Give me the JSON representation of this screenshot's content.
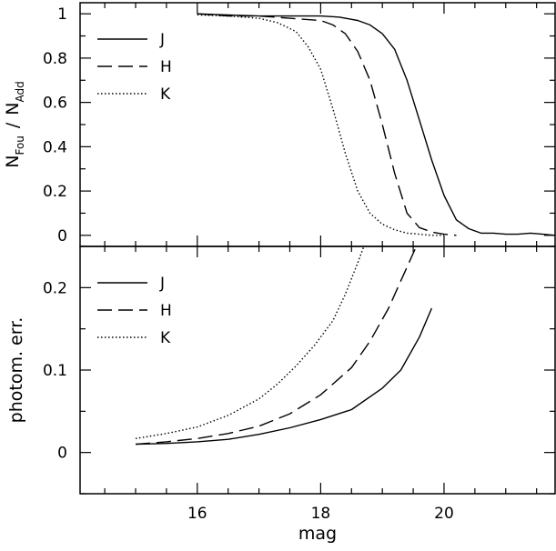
{
  "chart_data": [
    {
      "type": "line",
      "title": "",
      "xlabel": "",
      "ylabel": "N_Fou / N_Add",
      "ylabel_parts": {
        "n1": "N",
        "sub1": "Fou",
        "slash": "/",
        "n2": "N",
        "sub2": "Add"
      },
      "xlim": [
        14.1,
        21.8
      ],
      "ylim": [
        -0.05,
        1.05
      ],
      "yticks": [
        "0",
        "0.2",
        "0.4",
        "0.6",
        "0.8",
        "1"
      ],
      "legend": "top-left",
      "series": [
        {
          "name": "J",
          "dash": "solid",
          "x": [
            16.0,
            16.5,
            17.0,
            17.5,
            18.0,
            18.3,
            18.6,
            18.8,
            19.0,
            19.2,
            19.4,
            19.6,
            19.8,
            20.0,
            20.2,
            20.4,
            20.6,
            20.8,
            21.0,
            21.2,
            21.4,
            21.6,
            21.8
          ],
          "y": [
            1.0,
            0.995,
            0.99,
            0.99,
            0.99,
            0.985,
            0.97,
            0.95,
            0.91,
            0.84,
            0.7,
            0.52,
            0.34,
            0.18,
            0.07,
            0.03,
            0.01,
            0.01,
            0.005,
            0.005,
            0.01,
            0.005,
            0.0
          ]
        },
        {
          "name": "H",
          "dash": "long-dash",
          "x": [
            16.0,
            16.5,
            17.0,
            17.5,
            18.0,
            18.2,
            18.4,
            18.6,
            18.8,
            19.0,
            19.2,
            19.4,
            19.6,
            19.8,
            20.0,
            20.2
          ],
          "y": [
            1.0,
            0.99,
            0.99,
            0.98,
            0.97,
            0.95,
            0.91,
            0.83,
            0.7,
            0.5,
            0.28,
            0.1,
            0.035,
            0.015,
            0.005,
            0.0
          ]
        },
        {
          "name": "K",
          "dash": "dotted",
          "x": [
            16.0,
            16.5,
            17.0,
            17.3,
            17.6,
            17.8,
            18.0,
            18.2,
            18.4,
            18.6,
            18.8,
            19.0,
            19.2,
            19.4,
            19.6,
            19.8,
            20.0
          ],
          "y": [
            0.995,
            0.99,
            0.98,
            0.96,
            0.92,
            0.85,
            0.75,
            0.57,
            0.37,
            0.2,
            0.1,
            0.05,
            0.025,
            0.01,
            0.005,
            0.0,
            0.0
          ]
        }
      ]
    },
    {
      "type": "line",
      "title": "",
      "xlabel": "mag",
      "ylabel": "photom. err.",
      "xlim": [
        14.1,
        21.8
      ],
      "ylim": [
        -0.05,
        0.25
      ],
      "xticks": [
        "16",
        "18",
        "20"
      ],
      "yticks": [
        "0",
        "0.1",
        "0.2"
      ],
      "legend": "top-left",
      "series": [
        {
          "name": "J",
          "dash": "solid",
          "x": [
            15.0,
            15.5,
            16.0,
            16.5,
            17.0,
            17.5,
            18.0,
            18.5,
            19.0,
            19.3,
            19.6,
            19.8
          ],
          "y": [
            0.01,
            0.011,
            0.013,
            0.016,
            0.022,
            0.03,
            0.04,
            0.052,
            0.078,
            0.1,
            0.14,
            0.175
          ]
        },
        {
          "name": "H",
          "dash": "long-dash",
          "x": [
            15.0,
            15.5,
            16.0,
            16.5,
            17.0,
            17.5,
            18.0,
            18.5,
            18.8,
            19.1,
            19.4,
            19.55
          ],
          "y": [
            0.01,
            0.013,
            0.017,
            0.023,
            0.032,
            0.047,
            0.07,
            0.103,
            0.135,
            0.175,
            0.225,
            0.25
          ]
        },
        {
          "name": "K",
          "dash": "dotted",
          "x": [
            15.0,
            15.5,
            16.0,
            16.5,
            17.0,
            17.3,
            17.6,
            17.9,
            18.2,
            18.4,
            18.6,
            18.7
          ],
          "y": [
            0.017,
            0.023,
            0.031,
            0.045,
            0.065,
            0.083,
            0.105,
            0.13,
            0.16,
            0.192,
            0.23,
            0.25
          ]
        }
      ]
    }
  ]
}
